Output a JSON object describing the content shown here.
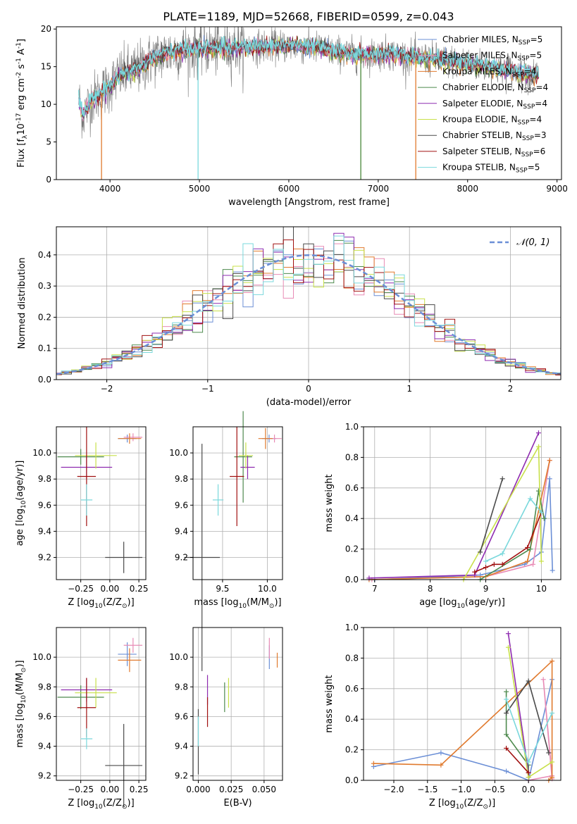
{
  "title": "PLATE=1189, MJD=52668, FIBERID=0599, z=0.043",
  "colors": {
    "chab_miles": "#6b8fd6",
    "salp_miles": "#e88bb5",
    "krou_miles": "#e07a2e",
    "chab_elodie": "#4e8a4e",
    "salp_elodie": "#8e2bb0",
    "krou_elodie": "#c8e04a",
    "chab_stelib": "#4a4a4a",
    "salp_stelib": "#a01010",
    "krou_stelib": "#7ad8dc"
  },
  "chart_data": [
    {
      "type": "line",
      "title": "PLATE=1189, MJD=52668, FIBERID=0599, z=0.043",
      "xlabel": "wavelength [Angstrom, rest frame]",
      "ylabel": "Flux [f$_\\lambda$10$^{-17}$ erg cm$^{-2}$ s$^{-1}$ A$^{-1}$]",
      "xlim": [
        3400,
        9050
      ],
      "ylim": [
        0,
        20.3
      ],
      "xticks": [
        4000,
        5000,
        6000,
        7000,
        8000,
        9000
      ],
      "yticks": [
        0,
        5,
        10,
        15,
        20
      ],
      "x_tick_labels": [
        "4000",
        "5000",
        "6000",
        "7000",
        "8000",
        "9000"
      ],
      "y_tick_labels": [
        "0",
        "5",
        "10",
        "15",
        "20"
      ],
      "legend_position": "right",
      "legend": [
        {
          "key": "chab_miles",
          "base": "Chabrier MILES, N",
          "sub": "SSP",
          "tail": "=5"
        },
        {
          "key": "salp_miles",
          "base": "Salpeter MILES, N",
          "sub": "SSP",
          "tail": "=5"
        },
        {
          "key": "krou_miles",
          "base": "Kroupa MILES, N",
          "sub": "SSP",
          "tail": "=4"
        },
        {
          "key": "chab_elodie",
          "base": "Chabrier ELODIE, N",
          "sub": "SSP",
          "tail": "=4"
        },
        {
          "key": "salp_elodie",
          "base": "Salpeter ELODIE, N",
          "sub": "SSP",
          "tail": "=4"
        },
        {
          "key": "krou_elodie",
          "base": "Kroupa ELODIE, N",
          "sub": "SSP",
          "tail": "=4"
        },
        {
          "key": "chab_stelib",
          "base": "Chabrier STELIB, N",
          "sub": "SSP",
          "tail": "=3"
        },
        {
          "key": "salp_stelib",
          "base": "Salpeter STELIB, N",
          "sub": "SSP",
          "tail": "=6"
        },
        {
          "key": "krou_stelib",
          "base": "Kroupa STELIB, N",
          "sub": "SSP",
          "tail": "=5"
        }
      ],
      "continuum": [
        [
          3650,
          10.5
        ],
        [
          3700,
          8.6
        ],
        [
          3800,
          10.8
        ],
        [
          3900,
          11.5
        ],
        [
          4000,
          12.5
        ],
        [
          4100,
          13.8
        ],
        [
          4300,
          14.6
        ],
        [
          4500,
          16.2
        ],
        [
          4700,
          17.0
        ],
        [
          5000,
          17.4
        ],
        [
          5300,
          17.5
        ],
        [
          5600,
          17.6
        ],
        [
          6000,
          17.8
        ],
        [
          6300,
          17.5
        ],
        [
          6500,
          17.0
        ],
        [
          6800,
          16.5
        ],
        [
          7100,
          16.8
        ],
        [
          7400,
          16.2
        ],
        [
          7700,
          15.9
        ],
        [
          8000,
          15.4
        ],
        [
          8300,
          14.8
        ],
        [
          8600,
          14.2
        ],
        [
          8800,
          13.9
        ]
      ],
      "drops": [
        {
          "series": "krou_miles",
          "x": 3905,
          "y": 0
        },
        {
          "series": "krou_stelib",
          "x": 4985,
          "y": 0
        },
        {
          "series": "krou_elodie",
          "x": 6805,
          "y": 0
        },
        {
          "series": "chab_elodie",
          "x": 6805,
          "y": 0
        },
        {
          "series": "krou_miles",
          "x": 7420,
          "y": 0
        }
      ]
    },
    {
      "type": "bar",
      "xlabel": "(data-model)/error",
      "ylabel": "Normed distribution",
      "xlim": [
        -2.5,
        2.5
      ],
      "ylim": [
        0,
        0.49
      ],
      "xticks": [
        -2,
        -1,
        0,
        1,
        2
      ],
      "yticks": [
        0.0,
        0.1,
        0.2,
        0.3,
        0.4
      ],
      "x_tick_labels": [
        "−2",
        "−1",
        "0",
        "1",
        "2"
      ],
      "y_tick_labels": [
        "0.0",
        "0.1",
        "0.2",
        "0.3",
        "0.4"
      ],
      "bin_width": 0.1,
      "legend": [
        {
          "label": "𝒩(0, 1)",
          "color": "#6b8fd6",
          "style": "dashed"
        }
      ],
      "reference_curve": "normal(0,1)"
    },
    {
      "type": "scatter",
      "xlabel": "Z [log$_{10}$(Z/Z$_\\odot$)]",
      "ylabel": "age  [log$_{10}$(age/yr)]",
      "xlim": [
        -0.46,
        0.31
      ],
      "ylim": [
        9.03,
        10.2
      ],
      "xticks": [
        -0.25,
        0.0,
        0.25
      ],
      "yticks": [
        9.2,
        9.4,
        9.6,
        9.8,
        10.0
      ],
      "x_tick_labels": [
        "−0.25",
        "0.00",
        "0.25"
      ],
      "y_tick_labels": [
        "9.2",
        "9.4",
        "9.6",
        "9.8",
        "10.0"
      ],
      "points": [
        {
          "series": "chab_miles",
          "x": 0.15,
          "y": 10.11,
          "xerr": 0.08,
          "yerr": 0.03
        },
        {
          "series": "salp_miles",
          "x": 0.2,
          "y": 10.12,
          "xerr": 0.08,
          "yerr": 0.03
        },
        {
          "series": "krou_miles",
          "x": 0.17,
          "y": 10.11,
          "xerr": 0.1,
          "yerr": 0.04
        },
        {
          "series": "chab_elodie",
          "x": -0.25,
          "y": 9.97,
          "xerr": 0.2,
          "yerr": 0.06
        },
        {
          "series": "salp_elodie",
          "x": -0.2,
          "y": 9.89,
          "xerr": 0.22,
          "yerr": 0.09
        },
        {
          "series": "krou_elodie",
          "x": -0.12,
          "y": 9.98,
          "xerr": 0.18,
          "yerr": 0.1
        },
        {
          "series": "chab_stelib",
          "x": 0.12,
          "y": 9.2,
          "xerr": 0.16,
          "yerr": 0.12
        },
        {
          "series": "salp_stelib",
          "x": -0.2,
          "y": 9.82,
          "xerr": 0.08,
          "yerr": 0.38
        },
        {
          "series": "krou_stelib",
          "x": -0.2,
          "y": 9.64,
          "xerr": 0.05,
          "yerr": 0.12
        }
      ]
    },
    {
      "type": "scatter",
      "xlabel": "mass [log$_{10}$(M/M$_\\odot$)]",
      "ylabel": "",
      "xlim": [
        9.17,
        10.17
      ],
      "ylim": [
        9.03,
        10.2
      ],
      "xticks": [
        9.5,
        10.0
      ],
      "yticks": [
        9.2,
        9.4,
        9.6,
        9.8,
        10.0
      ],
      "x_tick_labels": [
        "9.5",
        "10.0"
      ],
      "y_tick_labels": [
        "9.2",
        "9.4",
        "9.6",
        "9.8",
        "10.0"
      ],
      "points": [
        {
          "series": "chab_miles",
          "x": 10.02,
          "y": 10.11,
          "xerr": 0.08,
          "yerr": 0.03
        },
        {
          "series": "salp_miles",
          "x": 10.08,
          "y": 10.11,
          "xerr": 0.08,
          "yerr": 0.03
        },
        {
          "series": "krou_miles",
          "x": 9.98,
          "y": 10.11,
          "xerr": 0.08,
          "yerr": 0.08
        },
        {
          "series": "chab_elodie",
          "x": 9.73,
          "y": 9.97,
          "xerr": 0.1,
          "yerr": 0.35
        },
        {
          "series": "salp_elodie",
          "x": 9.78,
          "y": 9.89,
          "xerr": 0.08,
          "yerr": 0.09
        },
        {
          "series": "krou_elodie",
          "x": 9.76,
          "y": 9.98,
          "xerr": 0.08,
          "yerr": 0.1
        },
        {
          "series": "chab_stelib",
          "x": 9.27,
          "y": 9.2,
          "xerr": 0.2,
          "yerr": 0.87
        },
        {
          "series": "salp_stelib",
          "x": 9.66,
          "y": 9.82,
          "xerr": 0.08,
          "yerr": 0.38
        },
        {
          "series": "krou_stelib",
          "x": 9.45,
          "y": 9.64,
          "xerr": 0.06,
          "yerr": 0.12
        }
      ]
    },
    {
      "type": "line",
      "xlabel": "age  [log$_{10}$(age/yr)]",
      "ylabel": "mass weight",
      "xlim": [
        6.8,
        10.35
      ],
      "ylim": [
        0,
        1.0
      ],
      "xticks": [
        7,
        8,
        9,
        10
      ],
      "yticks": [
        0.0,
        0.2,
        0.4,
        0.6,
        0.8,
        1.0
      ],
      "x_tick_labels": [
        "7",
        "8",
        "9",
        "10"
      ],
      "y_tick_labels": [
        "0.0",
        "0.2",
        "0.4",
        "0.6",
        "0.8",
        "1.0"
      ],
      "series": [
        {
          "key": "chab_miles",
          "x": [
            7.0,
            8.9,
            9.7,
            10.0,
            10.15,
            10.2
          ],
          "y": [
            0.0,
            0.03,
            0.1,
            0.18,
            0.66,
            0.06
          ]
        },
        {
          "key": "salp_miles",
          "x": [
            6.95,
            9.0,
            9.85,
            10.15
          ],
          "y": [
            0.0,
            0.02,
            0.1,
            0.78
          ]
        },
        {
          "key": "krou_miles",
          "x": [
            6.9,
            9.0,
            9.75,
            10.15
          ],
          "y": [
            0.0,
            0.02,
            0.12,
            0.78
          ]
        },
        {
          "key": "chab_elodie",
          "x": [
            8.9,
            9.8,
            9.95,
            10.05
          ],
          "y": [
            0.0,
            0.2,
            0.58,
            0.4
          ]
        },
        {
          "key": "salp_elodie",
          "x": [
            6.9,
            8.8,
            9.95
          ],
          "y": [
            0.01,
            0.03,
            0.96
          ]
        },
        {
          "key": "krou_elodie",
          "x": [
            8.6,
            9.95,
            10.0
          ],
          "y": [
            0.0,
            0.87,
            0.12
          ]
        },
        {
          "key": "chab_stelib",
          "x": [
            8.9,
            9.3
          ],
          "y": [
            0.18,
            0.66
          ]
        },
        {
          "key": "salp_stelib",
          "x": [
            8.8,
            9.0,
            9.15,
            9.3,
            9.75,
            10.0
          ],
          "y": [
            0.05,
            0.08,
            0.1,
            0.1,
            0.21,
            0.44
          ]
        },
        {
          "key": "krou_stelib",
          "x": [
            9.0,
            9.3,
            9.8,
            10.0
          ],
          "y": [
            0.12,
            0.17,
            0.53,
            0.44
          ]
        }
      ]
    },
    {
      "type": "scatter",
      "xlabel": "Z [log$_{10}$(Z/Z$_\\odot$)]",
      "ylabel": "mass [log$_{10}$(M/M$_\\odot$)]",
      "xlim": [
        -0.46,
        0.31
      ],
      "ylim": [
        9.17,
        10.2
      ],
      "xticks": [
        -0.25,
        0.0,
        0.25
      ],
      "yticks": [
        9.2,
        9.4,
        9.6,
        9.8,
        10.0
      ],
      "x_tick_labels": [
        "−0.25",
        "0.00",
        "0.25"
      ],
      "y_tick_labels": [
        "9.2",
        "9.4",
        "9.6",
        "9.8",
        "10.0"
      ],
      "points": [
        {
          "series": "chab_miles",
          "x": 0.15,
          "y": 10.02,
          "xerr": 0.08,
          "yerr": 0.08
        },
        {
          "series": "salp_miles",
          "x": 0.2,
          "y": 10.08,
          "xerr": 0.08,
          "yerr": 0.05
        },
        {
          "series": "krou_miles",
          "x": 0.17,
          "y": 9.98,
          "xerr": 0.1,
          "yerr": 0.08
        },
        {
          "series": "chab_elodie",
          "x": -0.25,
          "y": 9.73,
          "xerr": 0.2,
          "yerr": 0.08
        },
        {
          "series": "salp_elodie",
          "x": -0.2,
          "y": 9.78,
          "xerr": 0.22,
          "yerr": 0.08
        },
        {
          "series": "krou_elodie",
          "x": -0.12,
          "y": 9.76,
          "xerr": 0.18,
          "yerr": 0.1
        },
        {
          "series": "chab_stelib",
          "x": 0.12,
          "y": 9.27,
          "xerr": 0.16,
          "yerr": 0.28
        },
        {
          "series": "salp_stelib",
          "x": -0.2,
          "y": 9.66,
          "xerr": 0.08,
          "yerr": 0.2
        },
        {
          "series": "krou_stelib",
          "x": -0.2,
          "y": 9.45,
          "xerr": 0.05,
          "yerr": 0.07
        }
      ]
    },
    {
      "type": "scatter",
      "xlabel": "E(B-V)",
      "ylabel": "",
      "xlim": [
        -0.004,
        0.064
      ],
      "ylim": [
        9.17,
        10.2
      ],
      "xticks": [
        0.0,
        0.025,
        0.05
      ],
      "yticks": [
        9.2,
        9.4,
        9.6,
        9.8,
        10.0
      ],
      "x_tick_labels": [
        "0.000",
        "0.025",
        "0.050"
      ],
      "y_tick_labels": [
        "9.2",
        "9.4",
        "9.6",
        "9.8",
        "10.0"
      ],
      "points": [
        {
          "series": "chab_miles",
          "x": 0.054,
          "y": 10.0,
          "yerr": 0.08
        },
        {
          "series": "salp_miles",
          "x": 0.054,
          "y": 10.06,
          "yerr": 0.07
        },
        {
          "series": "krou_miles",
          "x": 0.06,
          "y": 9.98,
          "yerr": 0.05
        },
        {
          "series": "chab_elodie",
          "x": 0.02,
          "y": 9.73,
          "yerr": 0.1
        },
        {
          "series": "salp_elodie",
          "x": 0.007,
          "y": 9.78,
          "yerr": 0.1
        },
        {
          "series": "krou_elodie",
          "x": 0.023,
          "y": 9.76,
          "yerr": 0.1
        },
        {
          "series": "chab_stelib",
          "x": 0.0,
          "y": 9.43,
          "yerr": 0.22
        },
        {
          "series": "salp_stelib",
          "x": 0.007,
          "y": 9.63,
          "yerr": 0.1
        },
        {
          "series": "krou_stelib",
          "x": 0.0,
          "y": 9.5,
          "yerr": 0.1
        }
      ]
    },
    {
      "type": "line",
      "xlabel": "Z [log$_{10}$(Z/Z$_\\odot$)]",
      "ylabel": "mass weight",
      "xlim": [
        -2.45,
        0.48
      ],
      "ylim": [
        0,
        1.0
      ],
      "xticks": [
        -2.0,
        -1.5,
        -1.0,
        -0.5,
        0.0
      ],
      "yticks": [
        0.0,
        0.2,
        0.4,
        0.6,
        0.8,
        1.0
      ],
      "x_tick_labels": [
        "−2.0",
        "−1.5",
        "−1.0",
        "−0.5",
        "0.0"
      ],
      "y_tick_labels": [
        "0.0",
        "0.2",
        "0.4",
        "0.6",
        "0.8",
        "1.0"
      ],
      "series": [
        {
          "key": "chab_miles",
          "x": [
            -2.3,
            -1.3,
            -0.33,
            0.0,
            0.35
          ],
          "y": [
            0.09,
            0.18,
            0.06,
            0.0,
            0.66
          ]
        },
        {
          "key": "salp_miles",
          "x": [
            0.0,
            0.35,
            0.22,
            0.35
          ],
          "y": [
            0.0,
            0.03,
            0.66,
            0.01
          ]
        },
        {
          "key": "krou_miles",
          "x": [
            -2.3,
            -1.3,
            0.35,
            0.35,
            0.3
          ],
          "y": [
            0.11,
            0.1,
            0.78,
            0.02,
            0.0
          ]
        },
        {
          "key": "chab_elodie",
          "x": [
            -0.33,
            -0.33,
            0.0,
            0.0
          ],
          "y": [
            0.58,
            0.3,
            0.1,
            0.05
          ]
        },
        {
          "key": "salp_elodie",
          "x": [
            -0.3,
            0.0,
            0.0
          ],
          "y": [
            0.96,
            0.05,
            0.02
          ]
        },
        {
          "key": "krou_elodie",
          "x": [
            -0.3,
            0.0,
            0.35
          ],
          "y": [
            0.87,
            0.02,
            0.12
          ]
        },
        {
          "key": "chab_stelib",
          "x": [
            -0.33,
            0.0,
            0.3
          ],
          "y": [
            0.44,
            0.65,
            0.18
          ]
        },
        {
          "key": "salp_stelib",
          "x": [
            -0.33,
            0.0
          ],
          "y": [
            0.21,
            0.05
          ]
        },
        {
          "key": "krou_stelib",
          "x": [
            -0.33,
            0.0,
            0.35
          ],
          "y": [
            0.53,
            0.12,
            0.44
          ]
        }
      ]
    }
  ]
}
